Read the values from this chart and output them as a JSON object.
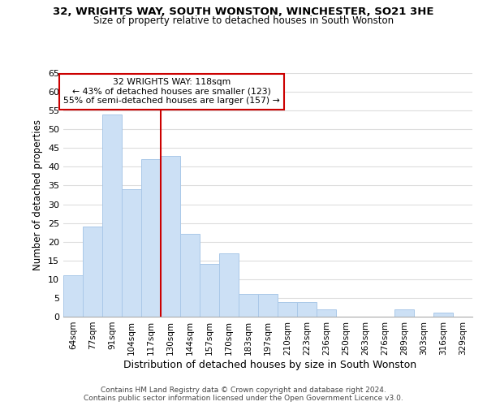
{
  "title1": "32, WRIGHTS WAY, SOUTH WONSTON, WINCHESTER, SO21 3HE",
  "title2": "Size of property relative to detached houses in South Wonston",
  "xlabel": "Distribution of detached houses by size in South Wonston",
  "ylabel": "Number of detached properties",
  "bin_labels": [
    "64sqm",
    "77sqm",
    "91sqm",
    "104sqm",
    "117sqm",
    "130sqm",
    "144sqm",
    "157sqm",
    "170sqm",
    "183sqm",
    "197sqm",
    "210sqm",
    "223sqm",
    "236sqm",
    "250sqm",
    "263sqm",
    "276sqm",
    "289sqm",
    "303sqm",
    "316sqm",
    "329sqm"
  ],
  "bar_heights": [
    11,
    24,
    54,
    34,
    42,
    43,
    22,
    14,
    17,
    6,
    6,
    4,
    4,
    2,
    0,
    0,
    0,
    2,
    0,
    1,
    0
  ],
  "bar_color": "#cce0f5",
  "bar_edge_color": "#aac8e8",
  "annotation_line1": "32 WRIGHTS WAY: 118sqm",
  "annotation_line2": "← 43% of detached houses are smaller (123)",
  "annotation_line3": "55% of semi-detached houses are larger (157) →",
  "vline_color": "#cc0000",
  "box_color": "#cc0000",
  "ylim": [
    0,
    65
  ],
  "yticks": [
    0,
    5,
    10,
    15,
    20,
    25,
    30,
    35,
    40,
    45,
    50,
    55,
    60,
    65
  ],
  "footnote1": "Contains HM Land Registry data © Crown copyright and database right 2024.",
  "footnote2": "Contains public sector information licensed under the Open Government Licence v3.0."
}
